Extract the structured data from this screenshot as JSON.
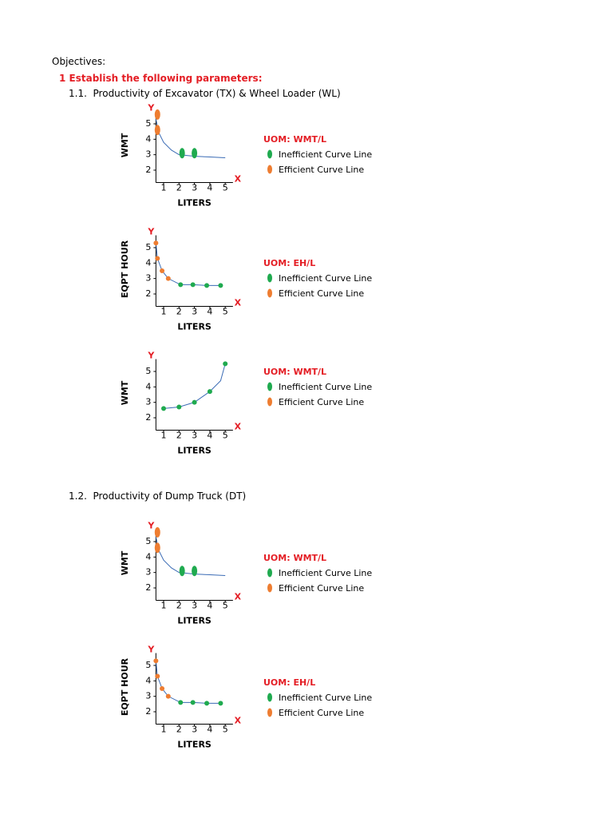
{
  "header": {
    "title": "Objectives:",
    "subtitle": "1 Establish the following parameters:"
  },
  "sections": [
    "1.1.  Productivity of Excavator (TX) & Wheel Loader (WL)",
    "1.2.  Productivity of Dump Truck (DT)"
  ],
  "chart_data": [
    {
      "type": "line",
      "y_letter": "Y",
      "x_letter": "X",
      "ylabel": "WMT",
      "xlabel": "LITERS",
      "legend_title": "UOM:  WMT/L",
      "marker": "ellipse",
      "xlim": [
        0.5,
        5.5
      ],
      "ylim": [
        1.2,
        5.8
      ],
      "xticks": [
        1,
        2,
        3,
        4,
        5
      ],
      "yticks": [
        2,
        3,
        4,
        5
      ],
      "series": [
        {
          "name": "Inefficient Curve Line",
          "color": "#1faa4f",
          "x": [
            2.2,
            3.0
          ],
          "values": [
            3.1,
            3.1
          ]
        },
        {
          "name": "Efficient Curve Line",
          "color": "#ee7d31",
          "x": [
            0.6,
            0.6
          ],
          "values": [
            5.6,
            4.6
          ]
        }
      ],
      "curve": {
        "color": "#3a6bb5",
        "x": [
          0.5,
          0.7,
          1,
          1.5,
          2,
          3,
          4,
          5
        ],
        "values": [
          5.3,
          4.4,
          3.8,
          3.3,
          3.0,
          2.9,
          2.85,
          2.8
        ]
      }
    },
    {
      "type": "line",
      "y_letter": "Y",
      "x_letter": "X",
      "ylabel": "EQPT HOUR",
      "xlabel": "LITERS",
      "legend_title": "UOM:  EH/L",
      "marker": "circle",
      "xlim": [
        0.5,
        5.5
      ],
      "ylim": [
        1.2,
        5.8
      ],
      "xticks": [
        1,
        2,
        3,
        4,
        5
      ],
      "yticks": [
        2,
        3,
        4,
        5
      ],
      "series": [
        {
          "name": "Inefficient Curve Line",
          "color": "#1faa4f",
          "x": [
            2.1,
            2.9,
            3.8,
            4.7
          ],
          "values": [
            2.6,
            2.6,
            2.55,
            2.55
          ]
        },
        {
          "name": "Efficient Curve Line",
          "color": "#ee7d31",
          "x": [
            0.5,
            0.6,
            0.9,
            1.3
          ],
          "values": [
            5.3,
            4.3,
            3.5,
            3.0
          ]
        }
      ],
      "curve": {
        "color": "#3a6bb5",
        "x": [
          0.5,
          0.6,
          0.9,
          1.3,
          2.1,
          2.9,
          3.8,
          4.7
        ],
        "values": [
          5.3,
          4.3,
          3.5,
          3.0,
          2.6,
          2.6,
          2.55,
          2.55
        ]
      }
    },
    {
      "type": "line",
      "y_letter": "Y",
      "x_letter": "X",
      "ylabel": "WMT",
      "xlabel": "LITERS",
      "legend_title": "UOM:  WMT/L",
      "marker": "circle",
      "xlim": [
        0.5,
        5.5
      ],
      "ylim": [
        1.2,
        5.8
      ],
      "xticks": [
        1,
        2,
        3,
        4,
        5
      ],
      "yticks": [
        2,
        3,
        4,
        5
      ],
      "series": [
        {
          "name": "Inefficient Curve Line",
          "color": "#1faa4f",
          "x": [
            1,
            2,
            3,
            4,
            5
          ],
          "values": [
            2.6,
            2.7,
            3.0,
            3.7,
            5.5
          ]
        },
        {
          "name": "Efficient Curve Line",
          "color": "#ee7d31",
          "x": [],
          "values": []
        }
      ],
      "curve": {
        "color": "#3a6bb5",
        "x": [
          1,
          2,
          3,
          4,
          4.7,
          5
        ],
        "values": [
          2.6,
          2.7,
          3.0,
          3.7,
          4.4,
          5.5
        ]
      }
    },
    {
      "type": "line",
      "y_letter": "Y",
      "x_letter": "X",
      "ylabel": "WMT",
      "xlabel": "LITERS",
      "legend_title": "UOM:  WMT/L",
      "marker": "ellipse",
      "xlim": [
        0.5,
        5.5
      ],
      "ylim": [
        1.2,
        5.8
      ],
      "xticks": [
        1,
        2,
        3,
        4,
        5
      ],
      "yticks": [
        2,
        3,
        4,
        5
      ],
      "series": [
        {
          "name": "Inefficient Curve Line",
          "color": "#1faa4f",
          "x": [
            2.2,
            3.0
          ],
          "values": [
            3.1,
            3.1
          ]
        },
        {
          "name": "Efficient Curve Line",
          "color": "#ee7d31",
          "x": [
            0.6,
            0.6
          ],
          "values": [
            5.6,
            4.6
          ]
        }
      ],
      "curve": {
        "color": "#3a6bb5",
        "x": [
          0.5,
          0.7,
          1,
          1.5,
          2,
          3,
          4,
          5
        ],
        "values": [
          5.3,
          4.4,
          3.8,
          3.3,
          3.0,
          2.9,
          2.85,
          2.8
        ]
      }
    },
    {
      "type": "line",
      "y_letter": "Y",
      "x_letter": "X",
      "ylabel": "EQPT HOUR",
      "xlabel": "LITERS",
      "legend_title": "UOM:  EH/L",
      "marker": "circle",
      "xlim": [
        0.5,
        5.5
      ],
      "ylim": [
        1.2,
        5.8
      ],
      "xticks": [
        1,
        2,
        3,
        4,
        5
      ],
      "yticks": [
        2,
        3,
        4,
        5
      ],
      "series": [
        {
          "name": "Inefficient Curve Line",
          "color": "#1faa4f",
          "x": [
            2.1,
            2.9,
            3.8,
            4.7
          ],
          "values": [
            2.6,
            2.6,
            2.55,
            2.55
          ]
        },
        {
          "name": "Efficient Curve Line",
          "color": "#ee7d31",
          "x": [
            0.5,
            0.6,
            0.9,
            1.3
          ],
          "values": [
            5.3,
            4.3,
            3.5,
            3.0
          ]
        }
      ],
      "curve": {
        "color": "#3a6bb5",
        "x": [
          0.5,
          0.6,
          0.9,
          1.3,
          2.1,
          2.9,
          3.8,
          4.7
        ],
        "values": [
          5.3,
          4.3,
          3.5,
          3.0,
          2.6,
          2.6,
          2.55,
          2.55
        ]
      }
    }
  ]
}
